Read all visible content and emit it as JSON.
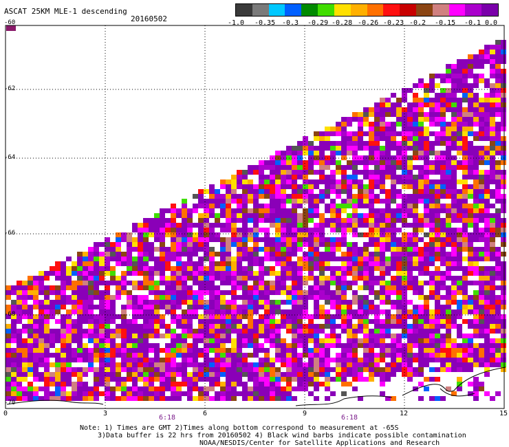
{
  "title": "ASCAT 25KM MLE-1 descending",
  "date": "20160502",
  "colorbar": {
    "labels": [
      "-1.0",
      "-0.35",
      "-0.3",
      "-0.29",
      "-0.28",
      "-0.26",
      "-0.23",
      "-0.2",
      "-0.15",
      "-0.1",
      "0.0"
    ],
    "colors": [
      "#3a3a3a",
      "#7a7a7a",
      "#00c8ff",
      "#0060ff",
      "#008a00",
      "#40dd00",
      "#ffe000",
      "#ffb000",
      "#ff7000",
      "#ff1010",
      "#c80000",
      "#8b4513",
      "#d08080",
      "#ff00ff",
      "#aa00cc",
      "#7a00aa"
    ]
  },
  "x_ticks": [
    "0",
    "3",
    "6",
    "9",
    "12",
    "15"
  ],
  "y_ticks": [
    "-60",
    "-62",
    "-64",
    "-66",
    "-68",
    "-70"
  ],
  "time_labels": [
    "6:18",
    "6:18"
  ],
  "notes": [
    "Note: 1) Times are GMT 2)Times along bottom correspond to measurement at -65S",
    "3)Data buffer is 22 hrs from 20160502 4) Black wind barbs indicate possible contamination",
    "NOAA/NESDIS/Center for Satellite Applications and Research"
  ]
}
